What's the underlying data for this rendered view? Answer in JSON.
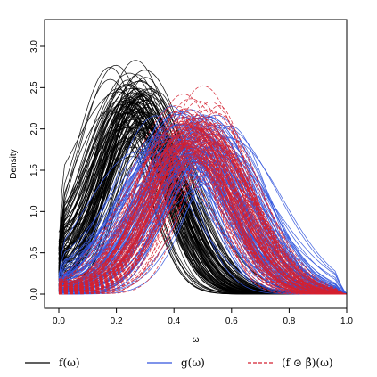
{
  "chart_data": {
    "type": "line",
    "title": "",
    "xlabel": "ω",
    "ylabel": "Density",
    "xlim": [
      0.0,
      1.0
    ],
    "ylim": [
      0.0,
      3.2
    ],
    "xticks": [
      "0.0",
      "0.2",
      "0.4",
      "0.6",
      "0.8",
      "1.0"
    ],
    "yticks": [
      "0.0",
      "0.5",
      "1.0",
      "1.5",
      "2.0",
      "2.5",
      "3.0"
    ],
    "grid": false,
    "legend_position": "bottom",
    "series": [
      {
        "name": "f(ω)",
        "color": "#000000",
        "line_style": "solid",
        "curve_count": 100,
        "representative": {
          "x": [
            0.0,
            0.05,
            0.1,
            0.15,
            0.2,
            0.25,
            0.3,
            0.35,
            0.4,
            0.45,
            0.5,
            0.55,
            0.6,
            0.65,
            0.7,
            0.75,
            0.8,
            0.85,
            0.9,
            0.95,
            1.0
          ],
          "y": [
            0.4,
            1.1,
            1.65,
            2.05,
            2.2,
            2.15,
            1.95,
            1.7,
            1.45,
            1.2,
            0.95,
            0.7,
            0.48,
            0.3,
            0.18,
            0.1,
            0.05,
            0.02,
            0.0,
            0.0,
            0.0
          ]
        },
        "peak_x_range": [
          0.12,
          0.3
        ],
        "peak_y_range": [
          1.9,
          3.22
        ]
      },
      {
        "name": "g(ω)",
        "color": "#3355dd",
        "line_style": "solid",
        "curve_count": 100,
        "representative": {
          "x": [
            0.0,
            0.05,
            0.1,
            0.15,
            0.2,
            0.25,
            0.3,
            0.35,
            0.4,
            0.45,
            0.5,
            0.55,
            0.6,
            0.65,
            0.7,
            0.75,
            0.8,
            0.85,
            0.9,
            0.95,
            1.0
          ],
          "y": [
            0.15,
            0.3,
            0.5,
            0.75,
            1.0,
            1.25,
            1.45,
            1.62,
            1.75,
            1.82,
            1.85,
            1.8,
            1.68,
            1.45,
            1.15,
            0.82,
            0.5,
            0.25,
            0.1,
            0.03,
            0.0
          ]
        },
        "peak_x_range": [
          0.38,
          0.62
        ],
        "peak_y_range": [
          1.5,
          2.4
        ]
      },
      {
        "name": "(f ⊙ β̂)(ω)",
        "color": "#d42030",
        "line_style": "dashed",
        "curve_count": 100,
        "representative": {
          "x": [
            0.0,
            0.05,
            0.1,
            0.15,
            0.2,
            0.25,
            0.3,
            0.35,
            0.4,
            0.45,
            0.5,
            0.55,
            0.6,
            0.65,
            0.7,
            0.75,
            0.8,
            0.85,
            0.9,
            0.95,
            1.0
          ],
          "y": [
            0.15,
            0.3,
            0.5,
            0.75,
            1.0,
            1.25,
            1.45,
            1.65,
            1.8,
            1.9,
            1.92,
            1.85,
            1.68,
            1.4,
            1.05,
            0.7,
            0.38,
            0.16,
            0.05,
            0.01,
            0.0
          ]
        },
        "peak_x_range": [
          0.4,
          0.58
        ],
        "peak_y_range": [
          1.6,
          2.72
        ]
      }
    ]
  },
  "legend": {
    "items": [
      {
        "label": "f(ω)",
        "color": "#000000",
        "dashed": false
      },
      {
        "label": "g(ω)",
        "color": "#3355dd",
        "dashed": false
      },
      {
        "label": "(f ⊙ β̂)(ω)",
        "color": "#d42030",
        "dashed": true
      }
    ]
  }
}
